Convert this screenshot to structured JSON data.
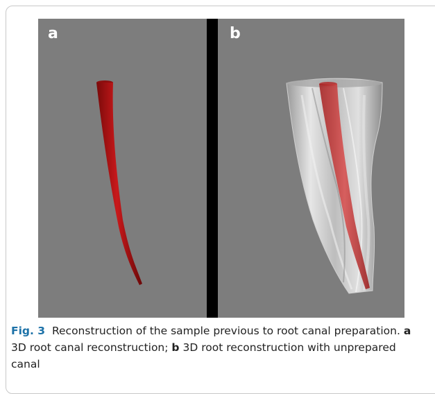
{
  "figure": {
    "panel_a_label": "a",
    "panel_b_label": "b",
    "colors": {
      "background": "#7d7d7d",
      "divider": "#000000",
      "canal": "#b01414",
      "root": "#c8c8c8"
    }
  },
  "caption": {
    "fig_label": "Fig. 3",
    "intro": "Reconstruction of the sample previous to root canal preparation.",
    "a_label": "a",
    "a_text": "3D root canal reconstruction;",
    "b_label": "b",
    "b_text": "3D root reconstruction with unprepared canal"
  }
}
